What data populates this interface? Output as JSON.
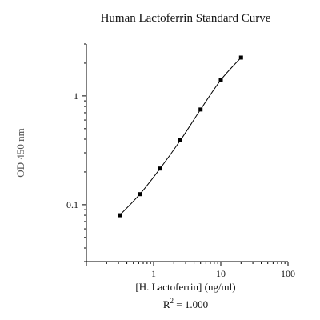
{
  "chart_data": {
    "type": "line",
    "title": "Human Lactoferrin Standard Curve",
    "xlabel": "[H. Lactoferrin] (ng/ml)",
    "ylabel": "OD 450 nm",
    "r_squared": {
      "prefix": "R",
      "superscript": "2",
      "value": " = 1.000"
    },
    "x_scale": "log",
    "y_scale": "log",
    "xlim": [
      0.1,
      100
    ],
    "ylim": [
      0.03,
      3
    ],
    "x_ticks": [
      {
        "value": 1,
        "label": "1"
      },
      {
        "value": 10,
        "label": "10"
      },
      {
        "value": 100,
        "label": "100"
      }
    ],
    "y_ticks": [
      {
        "value": 0.1,
        "label": "0.1"
      },
      {
        "value": 1,
        "label": "1"
      }
    ],
    "grid": false,
    "legend": "none",
    "series": [
      {
        "color": "#000000",
        "marker": "square",
        "points": [
          {
            "x": 0.3125,
            "y": 0.08
          },
          {
            "x": 0.625,
            "y": 0.125
          },
          {
            "x": 1.25,
            "y": 0.215
          },
          {
            "x": 2.5,
            "y": 0.39
          },
          {
            "x": 5,
            "y": 0.75
          },
          {
            "x": 10,
            "y": 1.4
          },
          {
            "x": 20,
            "y": 2.25
          }
        ]
      }
    ],
    "colors": {
      "title": "#111111",
      "axis": "#000000",
      "ylabel": "#555555"
    }
  }
}
